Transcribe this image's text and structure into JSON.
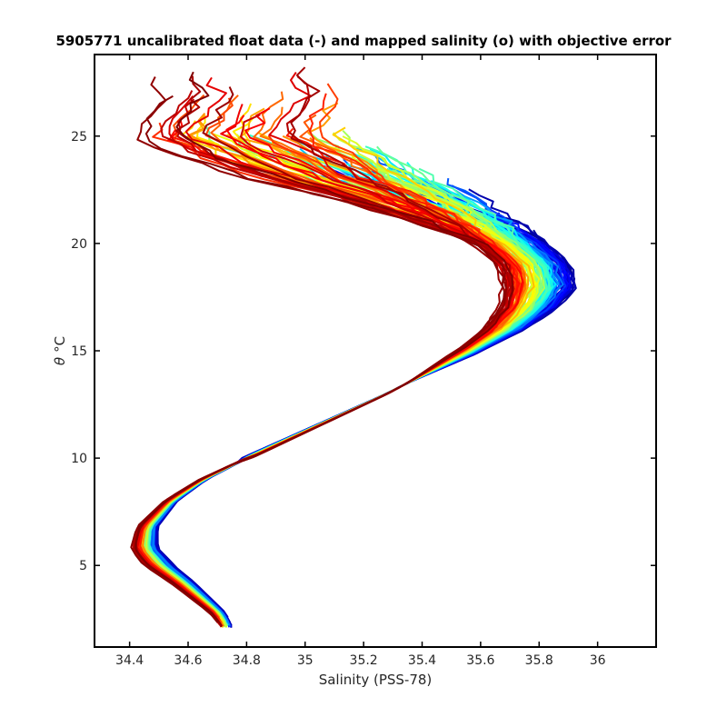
{
  "chart_data": {
    "type": "line",
    "title": "5905771 uncalibrated float data (-) and mapped salinity (o) with objective error",
    "xlabel": "Salinity (PSS-78)",
    "ylabel_symbol": "θ",
    "ylabel_unit": "°C",
    "xlim": [
      34.28,
      36.2
    ],
    "ylim": [
      1.2,
      28.8
    ],
    "xticks": [
      "34.4",
      "34.6",
      "34.8",
      "35",
      "35.2",
      "35.4",
      "35.6",
      "35.8",
      "36"
    ],
    "yticks": [
      "5",
      "10",
      "15",
      "20",
      "25"
    ],
    "colormap": "jet",
    "colormap_colors": [
      "#00008f",
      "#0000ff",
      "#0080ff",
      "#00ffff",
      "#80ff80",
      "#ffff00",
      "#ff8000",
      "#ff0000",
      "#800000"
    ],
    "profile_count": 120,
    "mean_profile": [
      {
        "theta": 2.2,
        "s": 34.73
      },
      {
        "theta": 2.8,
        "s": 34.7
      },
      {
        "theta": 3.5,
        "s": 34.64
      },
      {
        "theta": 4.2,
        "s": 34.58
      },
      {
        "theta": 5.0,
        "s": 34.5
      },
      {
        "theta": 5.8,
        "s": 34.45
      },
      {
        "theta": 6.8,
        "s": 34.46
      },
      {
        "theta": 8.0,
        "s": 34.54
      },
      {
        "theta": 9.0,
        "s": 34.65
      },
      {
        "theta": 10.0,
        "s": 34.8
      },
      {
        "theta": 11.0,
        "s": 34.96
      },
      {
        "theta": 12.0,
        "s": 35.12
      },
      {
        "theta": 13.0,
        "s": 35.28
      },
      {
        "theta": 14.0,
        "s": 35.42
      },
      {
        "theta": 15.0,
        "s": 35.56
      },
      {
        "theta": 16.0,
        "s": 35.68
      },
      {
        "theta": 17.0,
        "s": 35.76
      },
      {
        "theta": 18.0,
        "s": 35.8
      },
      {
        "theta": 19.0,
        "s": 35.78
      },
      {
        "theta": 20.0,
        "s": 35.7
      },
      {
        "theta": 21.0,
        "s": 35.57
      },
      {
        "theta": 22.0,
        "s": 35.4
      },
      {
        "theta": 23.0,
        "s": 35.2
      },
      {
        "theta": 24.0,
        "s": 35.05
      },
      {
        "theta": 25.0,
        "s": 34.9
      },
      {
        "theta": 26.0,
        "s": 34.95
      },
      {
        "theta": 27.0,
        "s": 35.0
      },
      {
        "theta": 27.6,
        "s": 34.95
      }
    ]
  }
}
